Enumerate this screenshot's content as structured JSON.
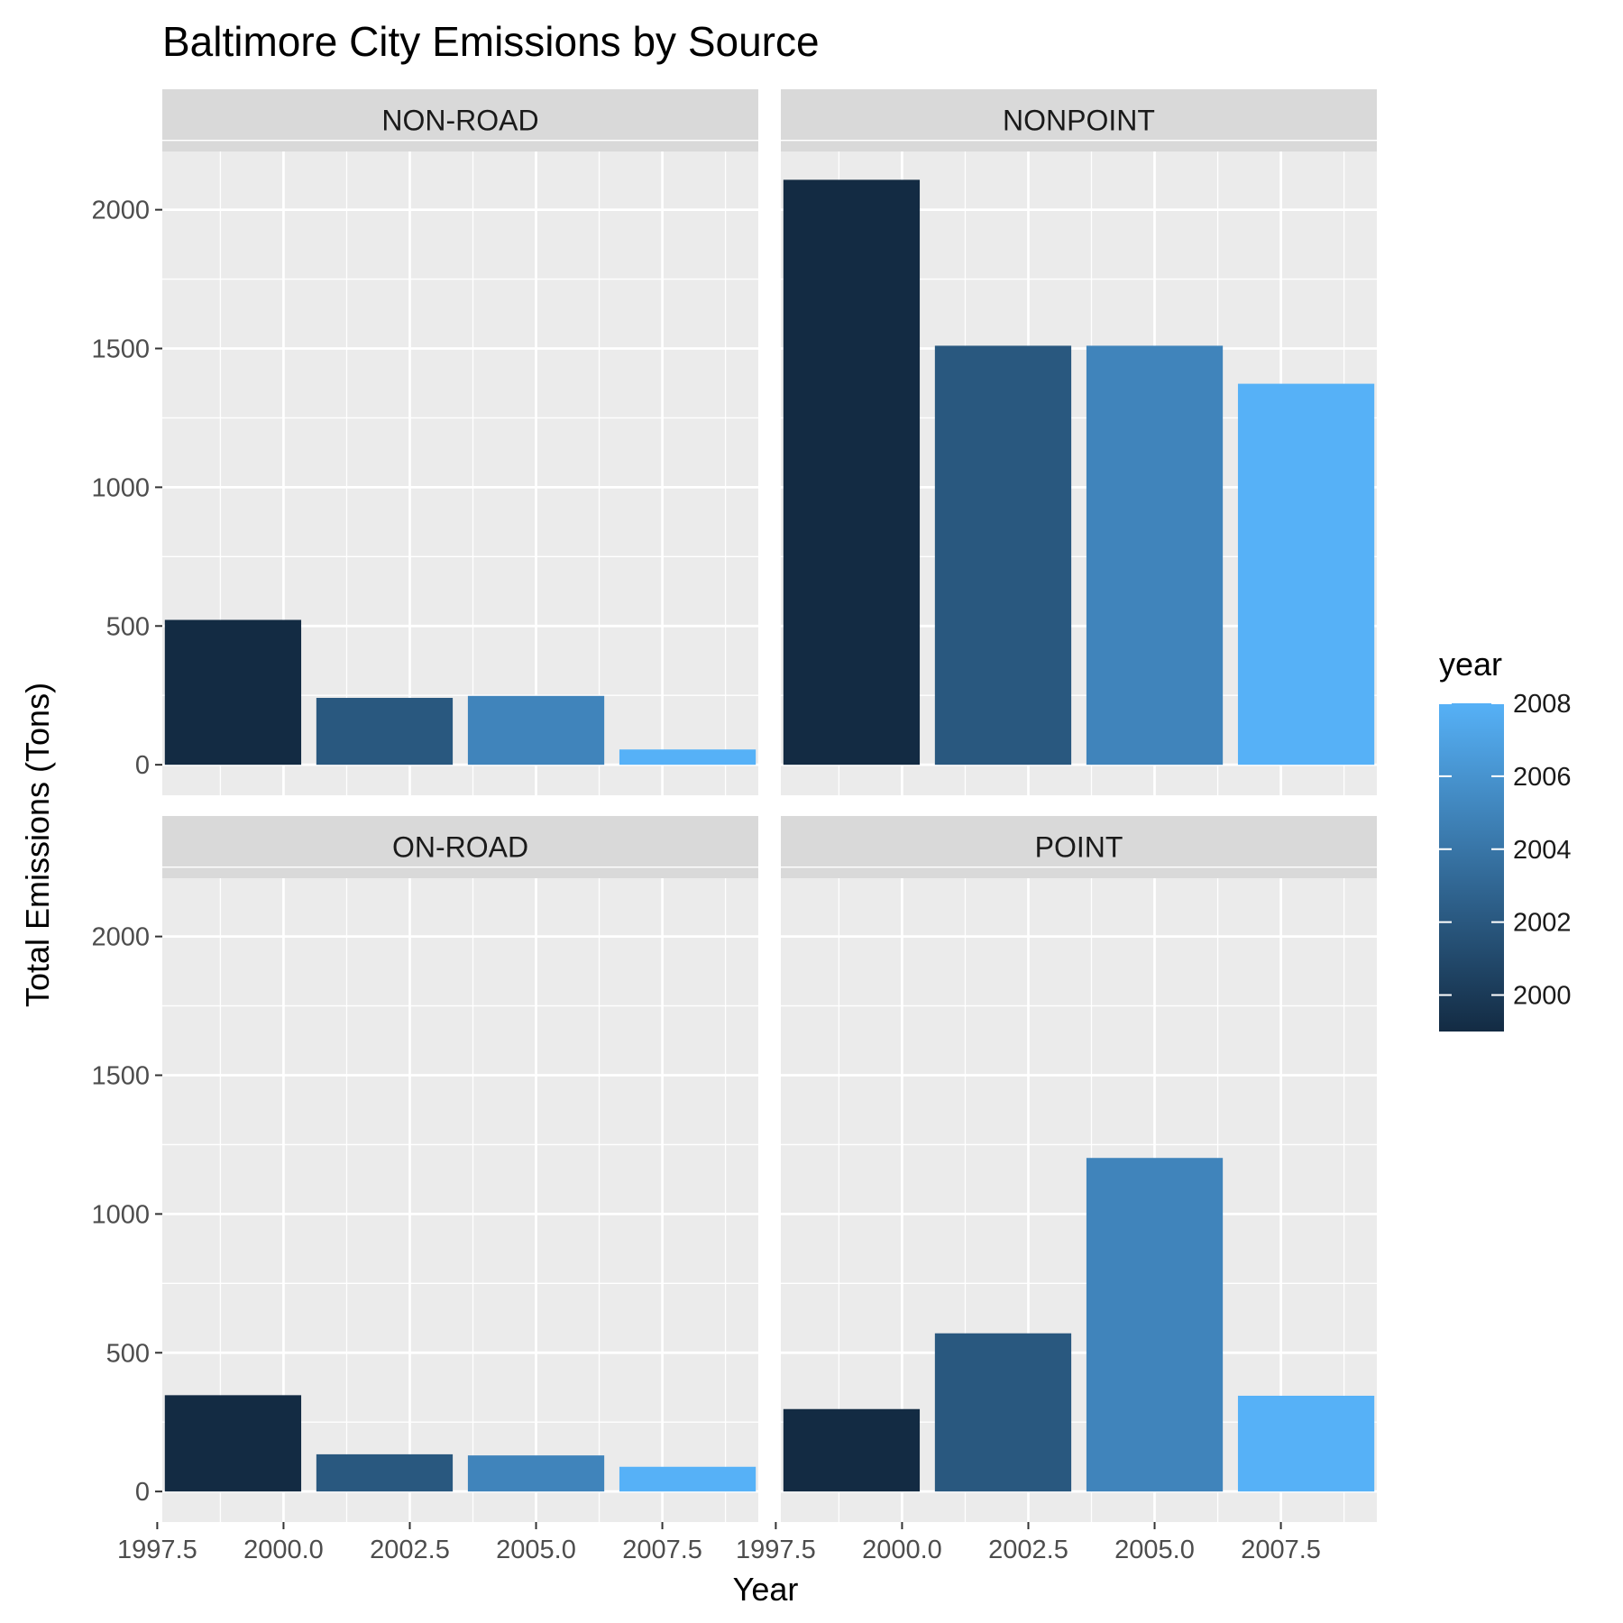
{
  "chart_data": {
    "type": "bar",
    "title": "Baltimore City Emissions by Source",
    "xlabel": "Year",
    "ylabel": "Total Emissions (Tons)",
    "xlim": [
      1997.6,
      2009.4
    ],
    "ylim": [
      -110,
      2210
    ],
    "x_ticks": [
      1997.5,
      2000.0,
      2002.5,
      2005.0,
      2007.5
    ],
    "x_tick_labels": [
      "1997.5",
      "2000.0",
      "2002.5",
      "2005.0",
      "2007.5"
    ],
    "y_ticks": [
      0,
      500,
      1000,
      1500,
      2000
    ],
    "y_tick_labels": [
      "0",
      "500",
      "1000",
      "1500",
      "2000"
    ],
    "years": [
      1999,
      2002,
      2005,
      2008
    ],
    "bar_width_years": 2.7,
    "facets": [
      {
        "name": "NON-ROAD",
        "values": [
          522,
          241,
          248,
          55
        ]
      },
      {
        "name": "NONPOINT",
        "values": [
          2108,
          1510,
          1510,
          1373
        ]
      },
      {
        "name": "ON-ROAD",
        "values": [
          347,
          134,
          130,
          89
        ]
      },
      {
        "name": "POINT",
        "values": [
          297,
          570,
          1202,
          345
        ]
      }
    ],
    "grid": true,
    "legend": {
      "title": "year",
      "position": "right",
      "type": "colorbar",
      "range": [
        1999,
        2008
      ],
      "breaks": [
        2000,
        2002,
        2004,
        2006,
        2008
      ],
      "break_labels": [
        "2000",
        "2002",
        "2004",
        "2006",
        "2008"
      ],
      "color_low": "#132B43",
      "color_high": "#56B1F7"
    },
    "colors": {
      "panel_background": "#EBEBEB",
      "strip_background": "#D9D9D9",
      "grid": "#FFFFFF"
    }
  }
}
